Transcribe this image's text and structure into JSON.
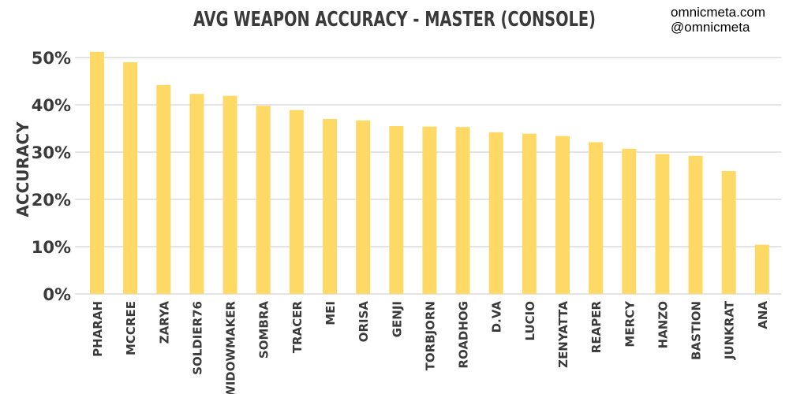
{
  "watermark": {
    "site": "omnicmeta.com",
    "handle": "@omnicmeta"
  },
  "colors": {
    "bar": "#FFD966",
    "grid": "#c8c8c8",
    "text": "#3a3a3a"
  },
  "chart_data": {
    "type": "bar",
    "title": "AVG WEAPON ACCURACY - MASTER (CONSOLE)",
    "xlabel": "",
    "ylabel": "ACCURACY",
    "ylim": [
      0,
      50
    ],
    "yticks": [
      0,
      10,
      20,
      30,
      40,
      50
    ],
    "ytick_labels": [
      "0%",
      "10%",
      "20%",
      "30%",
      "40%",
      "50%"
    ],
    "grid": "horizontal",
    "legend": "none",
    "categories": [
      "PHARAH",
      "MCCREE",
      "ZARYA",
      "SOLDIER76",
      "WIDOWMAKER",
      "SOMBRA",
      "TRACER",
      "MEI",
      "ORISA",
      "GENJI",
      "TORBJORN",
      "ROADHOG",
      "D.VA",
      "LUCIO",
      "ZENYATTA",
      "REAPER",
      "MERCY",
      "HANZO",
      "BASTION",
      "JUNKRAT",
      "ANA"
    ],
    "values": [
      51.2,
      49.0,
      44.2,
      42.3,
      41.9,
      39.8,
      38.9,
      37.0,
      36.7,
      35.5,
      35.4,
      35.3,
      34.2,
      33.9,
      33.4,
      32.1,
      30.7,
      29.6,
      29.2,
      26.0,
      10.4
    ]
  }
}
